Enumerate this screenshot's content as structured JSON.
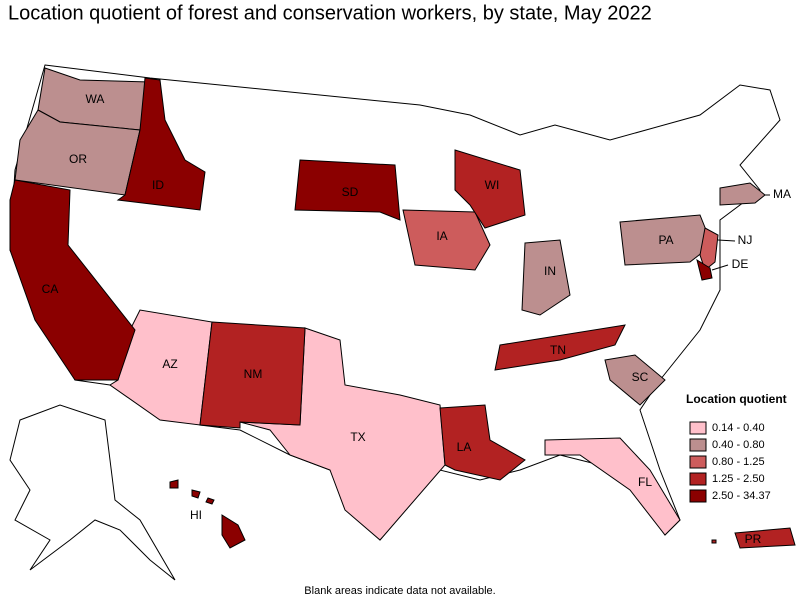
{
  "title": "Location quotient of forest and conservation workers, by state, May 2022",
  "legend": {
    "title": "Location quotient",
    "items": [
      {
        "label": "0.14 - 0.40",
        "color": "#ffc0cb",
        "states": [
          "AZ",
          "TX",
          "FL"
        ]
      },
      {
        "label": "0.40 - 0.80",
        "color": "#bc8f8f",
        "states": [
          "WA",
          "OR",
          "IN",
          "SC",
          "PA",
          "MA"
        ]
      },
      {
        "label": "0.80 - 1.25",
        "color": "#cd5c5c",
        "states": [
          "IA",
          "NJ"
        ]
      },
      {
        "label": "1.25 - 2.50",
        "color": "#b22222",
        "states": [
          "NM",
          "WI",
          "TN",
          "LA",
          "PR"
        ]
      },
      {
        "label": "2.50 - 34.37",
        "color": "#8b0000",
        "states": [
          "ID",
          "CA",
          "SD",
          "DE",
          "HI"
        ]
      }
    ]
  },
  "note": "Blank areas indicate data not available."
}
